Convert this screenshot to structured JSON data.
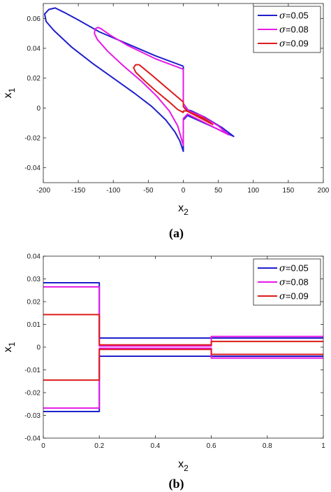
{
  "chart_data": [
    {
      "type": "line",
      "caption": "(a)",
      "xlabel": "x",
      "xlabel_sub": "2",
      "ylabel": "x",
      "ylabel_sub": "1",
      "xlim": [
        -200,
        200
      ],
      "ylim": [
        -0.05,
        0.07
      ],
      "xticks": [
        -200,
        -150,
        -100,
        -50,
        0,
        50,
        100,
        150,
        200
      ],
      "xtick_labels": [
        "-200",
        "-150",
        "-100",
        "-50",
        "0",
        "50",
        "100",
        "150",
        "200"
      ],
      "yticks": [
        -0.04,
        -0.02,
        0,
        0.02,
        0.04,
        0.06
      ],
      "ytick_labels": [
        "-0.04",
        "-0.02",
        "0",
        "0.02",
        "0.04",
        "0.06"
      ],
      "legend_position": "top-right",
      "grid": false,
      "series": [
        {
          "name": "=0.05",
          "symbol": "σ",
          "color": "#1f1fcc",
          "points": [
            [
              0,
              0.028
            ],
            [
              -40,
              0.035
            ],
            [
              -80,
              0.043
            ],
            [
              -120,
              0.051
            ],
            [
              -150,
              0.059
            ],
            [
              -170,
              0.064
            ],
            [
              -183,
              0.067
            ],
            [
              -192,
              0.066
            ],
            [
              -198,
              0.063
            ],
            [
              -196,
              0.058
            ],
            [
              -185,
              0.052
            ],
            [
              -160,
              0.041
            ],
            [
              -130,
              0.03
            ],
            [
              -100,
              0.02
            ],
            [
              -70,
              0.01
            ],
            [
              -45,
              0.001
            ],
            [
              -25,
              -0.008
            ],
            [
              -12,
              -0.016
            ],
            [
              -5,
              -0.022
            ],
            [
              0,
              -0.029
            ],
            [
              0,
              -0.008
            ],
            [
              6,
              -0.005
            ],
            [
              72,
              -0.019
            ],
            [
              55,
              -0.013
            ],
            [
              30,
              -0.006
            ],
            [
              12,
              -0.002
            ],
            [
              4,
              -0.001
            ],
            [
              0,
              0.001
            ],
            [
              0,
              0.028
            ]
          ]
        },
        {
          "name": "=0.08",
          "symbol": "σ",
          "color": "#e619e6",
          "points": [
            [
              0,
              0.026
            ],
            [
              -40,
              0.033
            ],
            [
              -80,
              0.042
            ],
            [
              -105,
              0.049
            ],
            [
              -117,
              0.053
            ],
            [
              -122,
              0.054
            ],
            [
              -126,
              0.053
            ],
            [
              -127,
              0.05
            ],
            [
              -123,
              0.046
            ],
            [
              -108,
              0.038
            ],
            [
              -85,
              0.028
            ],
            [
              -60,
              0.018
            ],
            [
              -38,
              0.008
            ],
            [
              -20,
              -0.002
            ],
            [
              -8,
              -0.012
            ],
            [
              0,
              -0.025
            ],
            [
              0,
              -0.007
            ],
            [
              6,
              -0.004
            ],
            [
              65,
              -0.018
            ],
            [
              50,
              -0.012
            ],
            [
              25,
              -0.005
            ],
            [
              8,
              -0.002
            ],
            [
              0,
              0.003
            ],
            [
              0,
              0.026
            ]
          ]
        },
        {
          "name": "=0.09",
          "symbol": "σ",
          "color": "#dd1c1c",
          "points": [
            [
              0,
              0.004
            ],
            [
              -15,
              0.01
            ],
            [
              -30,
              0.016
            ],
            [
              -45,
              0.022
            ],
            [
              -58,
              0.027
            ],
            [
              -63,
              0.029
            ],
            [
              -68,
              0.029
            ],
            [
              -71,
              0.027
            ],
            [
              -68,
              0.024
            ],
            [
              -55,
              0.018
            ],
            [
              -38,
              0.011
            ],
            [
              -20,
              0.004
            ],
            [
              -8,
              -0.001
            ],
            [
              0,
              -0.003
            ],
            [
              0,
              -0.002
            ],
            [
              5,
              -0.002
            ],
            [
              42,
              -0.011
            ],
            [
              30,
              -0.007
            ],
            [
              15,
              -0.004
            ],
            [
              5,
              -0.002
            ],
            [
              0,
              0.001
            ],
            [
              0,
              0.004
            ]
          ]
        }
      ]
    },
    {
      "type": "line",
      "caption": "(b)",
      "xlabel": "x",
      "xlabel_sub": "2",
      "ylabel": "x",
      "ylabel_sub": "1",
      "xlim": [
        0,
        1
      ],
      "ylim": [
        -0.04,
        0.04
      ],
      "xticks": [
        0,
        0.2,
        0.4,
        0.6,
        0.8,
        1
      ],
      "xtick_labels": [
        "0",
        "0.2",
        "0.4",
        "0.6",
        "0.8",
        "1"
      ],
      "yticks": [
        -0.04,
        -0.03,
        -0.02,
        -0.01,
        0,
        0.01,
        0.02,
        0.03,
        0.04
      ],
      "ytick_labels": [
        "-0.04",
        "-0.03",
        "-0.02",
        "-0.01",
        "0",
        "0.01",
        "0.02",
        "0.03",
        "0.04"
      ],
      "legend_position": "top-right",
      "grid": false,
      "series": [
        {
          "name": "=0.05",
          "symbol": "σ",
          "color": "#1f1fcc",
          "paths": [
            [
              [
                0,
                0.0283
              ],
              [
                0.2,
                0.0283
              ],
              [
                0.2,
                0.004
              ],
              [
                0.6,
                0.004
              ],
              [
                0.6,
                0.004
              ],
              [
                1,
                0.004
              ]
            ],
            [
              [
                0,
                -0.0283
              ],
              [
                0.2,
                -0.0283
              ],
              [
                0.2,
                -0.004
              ],
              [
                0.6,
                -0.004
              ],
              [
                0.6,
                -0.004
              ],
              [
                1,
                -0.004
              ]
            ]
          ]
        },
        {
          "name": "=0.08",
          "symbol": "σ",
          "color": "#e619e6",
          "paths": [
            [
              [
                0,
                0.0265
              ],
              [
                0.2,
                0.0265
              ],
              [
                0.2,
                0.0005
              ],
              [
                0.6,
                0.0005
              ],
              [
                0.6,
                0.0047
              ],
              [
                1,
                0.0047
              ]
            ],
            [
              [
                0,
                -0.0268
              ],
              [
                0.2,
                -0.0268
              ],
              [
                0.2,
                -0.0005
              ],
              [
                0.6,
                -0.0005
              ],
              [
                0.6,
                -0.0048
              ],
              [
                1,
                -0.0048
              ]
            ]
          ]
        },
        {
          "name": "=0.09",
          "symbol": "σ",
          "color": "#dd1c1c",
          "paths": [
            [
              [
                0,
                0.0143
              ],
              [
                0.2,
                0.0143
              ],
              [
                0.2,
                0.001
              ],
              [
                0.6,
                0.001
              ],
              [
                0.6,
                0.0025
              ],
              [
                1,
                0.0025
              ]
            ],
            [
              [
                0,
                -0.0145
              ],
              [
                0.2,
                -0.0145
              ],
              [
                0.2,
                -0.001
              ],
              [
                0.6,
                -0.001
              ],
              [
                0.6,
                -0.0032
              ],
              [
                1,
                -0.0032
              ]
            ]
          ]
        }
      ]
    }
  ]
}
